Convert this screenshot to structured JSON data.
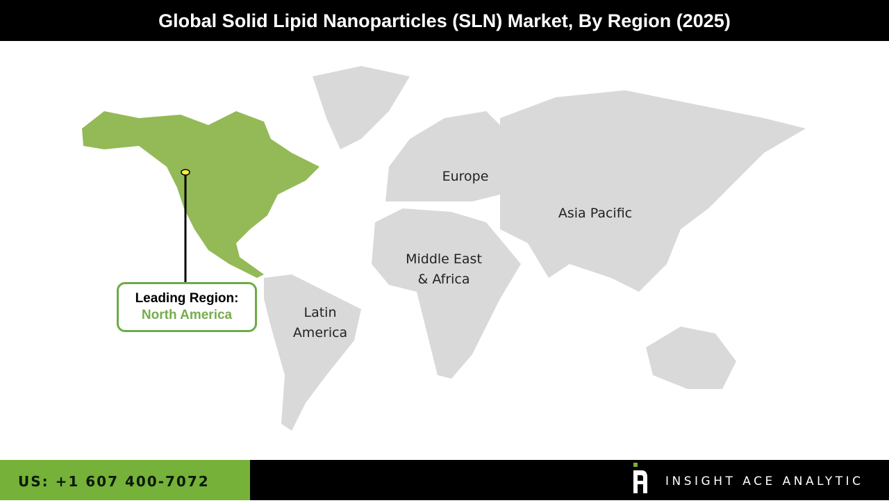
{
  "title": "Global Solid Lipid Nanoparticles (SLN) Market, By Region (2025)",
  "regions": [
    {
      "name": "North America",
      "highlighted": true
    },
    {
      "name": "Europe",
      "label": "Europe"
    },
    {
      "name": "Asia Pacific",
      "label": "Asia Pacific"
    },
    {
      "name": "Middle East & Africa",
      "label_line1": "Middle East",
      "label_line2": "& Africa"
    },
    {
      "name": "Latin America",
      "label_line1": "Latin",
      "label_line2": "America"
    }
  ],
  "callout": {
    "heading": "Leading Region:",
    "value": "North America"
  },
  "footer": {
    "phone": "US: +1 607 400-7072",
    "brand": "INSIGHT ACE ANALYTIC"
  },
  "colors": {
    "highlight": "#94b957",
    "land": "#d9d9d9",
    "accent": "#76b139",
    "header_bg": "#000000"
  }
}
